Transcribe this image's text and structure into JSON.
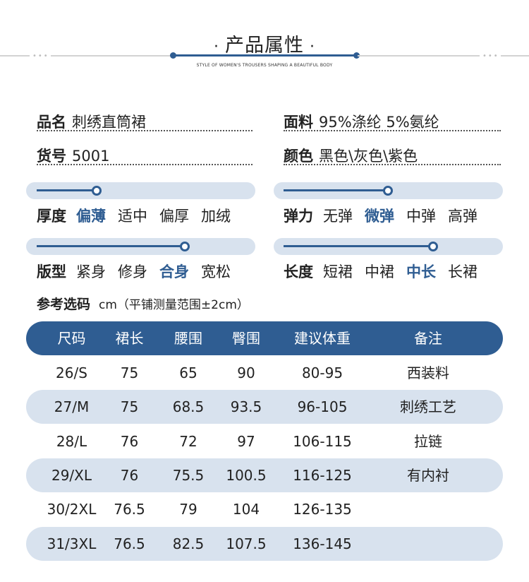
{
  "header": {
    "title": "产品属性",
    "dot_left": "·",
    "dot_right": "·",
    "subtitle": "STYLE OF WOMEN'S TROUSERS SHAPING A BEAUTIFUL BODY",
    "dots": "•••"
  },
  "info": {
    "name_label": "品名",
    "name_value": "刺绣直筒裙",
    "fabric_label": "面料",
    "fabric_value": "95%涤纶 5%氨纶",
    "code_label": "货号",
    "code_value": "5001",
    "color_label": "颜色",
    "color_value": "黑色\\灰色\\紫色"
  },
  "attributes": [
    {
      "label": "厚度",
      "options": [
        "偏薄",
        "适中",
        "偏厚",
        "加绒"
      ],
      "selected": 0,
      "level": 0.25
    },
    {
      "label": "弹力",
      "options": [
        "无弹",
        "微弹",
        "中弹",
        "高弹"
      ],
      "selected": 1,
      "level": 0.5
    },
    {
      "label": "版型",
      "options": [
        "紧身",
        "修身",
        "合身",
        "宽松"
      ],
      "selected": 2,
      "level": 0.68
    },
    {
      "label": "长度",
      "options": [
        "短裙",
        "中裙",
        "中长",
        "长裙"
      ],
      "selected": 2,
      "level": 0.68
    }
  ],
  "size_ref": {
    "label": "参考选码",
    "note": "cm（平铺测量范围±2cm）"
  },
  "size_table": {
    "headers": [
      "尺码",
      "裙长",
      "腰围",
      "臀围",
      "建议体重",
      "备注"
    ],
    "rows": [
      [
        "26/S",
        "75",
        "65",
        "90",
        "80-95",
        "西装料"
      ],
      [
        "27/M",
        "75",
        "68.5",
        "93.5",
        "96-105",
        "刺绣工艺"
      ],
      [
        "28/L",
        "76",
        "72",
        "97",
        "106-115",
        "拉链"
      ],
      [
        "29/XL",
        "76",
        "75.5",
        "100.5",
        "116-125",
        "有内衬"
      ],
      [
        "30/2XL",
        "76.5",
        "79",
        "104",
        "126-135",
        ""
      ],
      [
        "31/3XL",
        "76.5",
        "82.5",
        "107.5",
        "136-145",
        ""
      ]
    ]
  },
  "colors": {
    "accent": "#2f5d92",
    "stripe": "#d8e2ee"
  }
}
